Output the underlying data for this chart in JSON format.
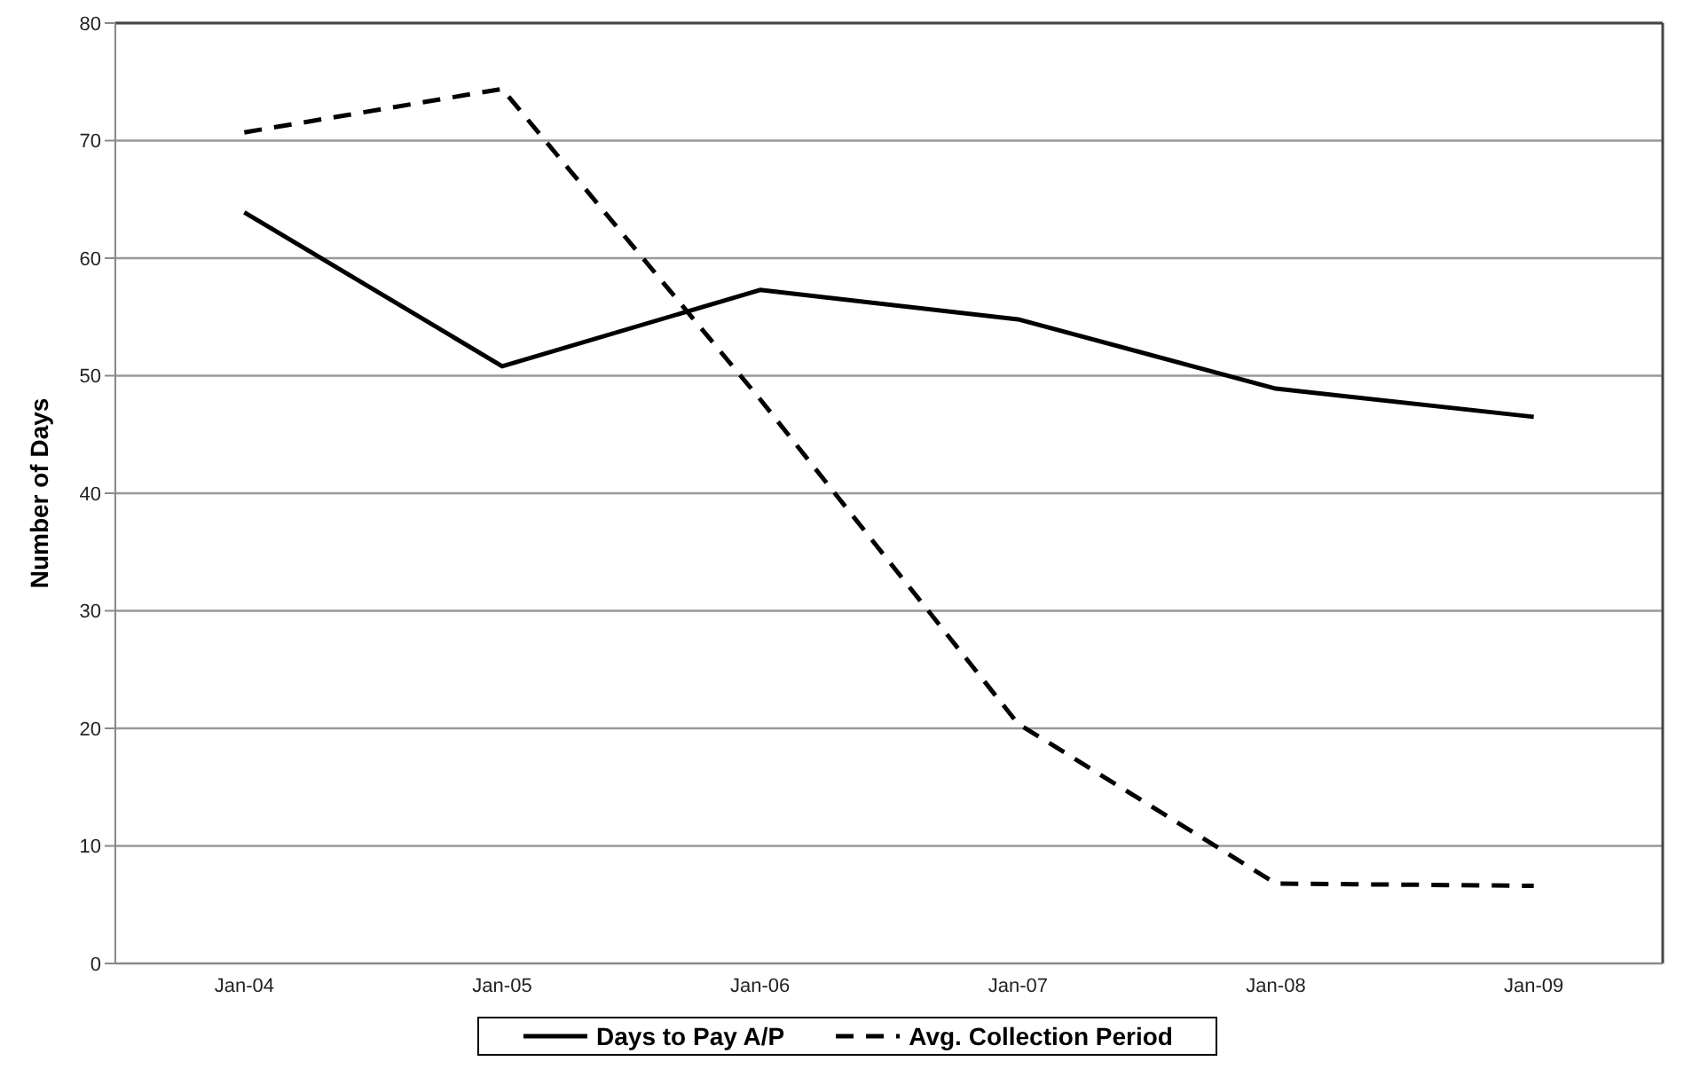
{
  "chart_data": {
    "type": "line",
    "ylabel": "Number of Days",
    "categories": [
      "Jan-04",
      "Jan-05",
      "Jan-06",
      "Jan-07",
      "Jan-08",
      "Jan-09"
    ],
    "series": [
      {
        "name": "Days to Pay A/P",
        "color": "#000000",
        "line_style": "solid",
        "values": [
          63.9,
          50.8,
          57.3,
          54.8,
          48.9,
          46.5
        ]
      },
      {
        "name": "Avg. Collection Period",
        "color": "#000000",
        "line_style": "dashed",
        "values": [
          70.7,
          74.4,
          48,
          20.4,
          6.8,
          6.6
        ]
      }
    ],
    "ylim": [
      0,
      80
    ],
    "yticks": [
      0,
      10,
      20,
      30,
      40,
      50,
      60,
      70,
      80
    ],
    "grid": "y",
    "legend": "bottom",
    "marker": "none"
  }
}
